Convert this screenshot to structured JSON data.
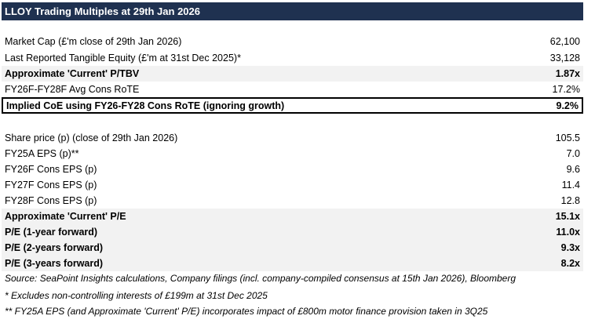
{
  "title": "LLOY Trading Multiples at 29th Jan 2026",
  "section1": [
    {
      "label": "Market Cap (£'m close of 29th Jan 2026)",
      "value": "62,100",
      "bold": false
    },
    {
      "label": "Last Reported Tangible Equity (£'m at 31st Dec 2025)*",
      "value": "33,128",
      "bold": false
    },
    {
      "label": "Approximate 'Current' P/TBV",
      "value": "1.87x",
      "bold": true
    },
    {
      "label": "FY26F-FY28F Avg Cons RoTE",
      "value": "17.2%",
      "bold": false
    },
    {
      "label": "Implied CoE using FY26-FY28 Cons RoTE (ignoring growth)",
      "value": "9.2%",
      "bold": true
    }
  ],
  "section2": [
    {
      "label": "Share price (p) (close of 29th Jan 2026)",
      "value": "105.5",
      "bold": false
    },
    {
      "label": "FY25A EPS (p)**",
      "value": "7.0",
      "bold": false
    },
    {
      "label": "FY26F Cons EPS (p)",
      "value": "9.6",
      "bold": false
    },
    {
      "label": "FY27F Cons EPS (p)",
      "value": "11.4",
      "bold": false
    },
    {
      "label": "FY28F Cons EPS (p)",
      "value": "12.8",
      "bold": false
    },
    {
      "label": "Approximate 'Current' P/E",
      "value": "15.1x",
      "bold": true
    },
    {
      "label": "P/E (1-year forward)",
      "value": "11.0x",
      "bold": true
    },
    {
      "label": "P/E (2-years forward)",
      "value": "9.3x",
      "bold": true
    },
    {
      "label": "P/E (3-years forward)",
      "value": "8.2x",
      "bold": true
    }
  ],
  "footnotes": [
    "Source: SeaPoint Insights calculations, Company filings (incl. company-compiled consensus at 15th Jan 2026), Bloomberg",
    "* Excludes non-controlling interests of £199m at 31st Dec 2025",
    "** FY25A EPS (and Approximate 'Current' P/E) incorporates impact of £800m motor finance provision taken in 3Q25"
  ],
  "colors": {
    "header_bg": "#1f3150",
    "header_text": "#ffffff",
    "shaded_row": "#f2f2f2"
  }
}
